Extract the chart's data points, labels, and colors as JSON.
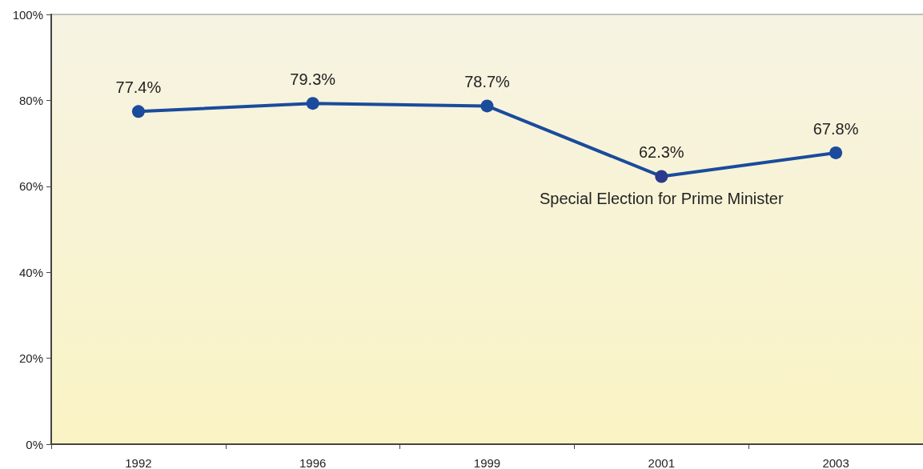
{
  "chart_data": {
    "type": "line",
    "categories": [
      "1992",
      "1996",
      "1999",
      "2001",
      "2003"
    ],
    "values": [
      77.4,
      79.3,
      78.7,
      62.3,
      67.8
    ],
    "value_labels": [
      "77.4%",
      "79.3%",
      "78.7%",
      "62.3%",
      "67.8%"
    ],
    "color": "#1a4b9c",
    "colors": [
      "#1a4b9c",
      "#1a4b9c",
      "#1a4b9c",
      "#2b3a8a",
      "#1a4b9c"
    ],
    "ylim": [
      0,
      100
    ],
    "yticks": [
      {
        "value": 0,
        "label": "0%"
      },
      {
        "value": 20,
        "label": "20%"
      },
      {
        "value": 40,
        "label": "40%"
      },
      {
        "value": 60,
        "label": "60%"
      },
      {
        "value": 80,
        "label": "80%"
      },
      {
        "value": 100,
        "label": "100%"
      }
    ],
    "annotations": [
      {
        "text": "Special Election for Prime Minister",
        "x": "2001",
        "y": 62.3
      }
    ],
    "grid": false,
    "marker": "circle",
    "line_style": "solid"
  }
}
